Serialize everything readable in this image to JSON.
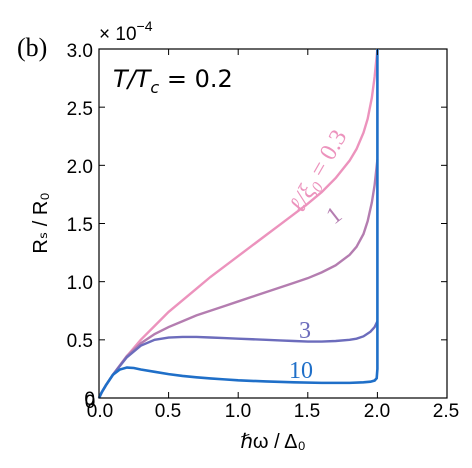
{
  "panel_label": "(b)",
  "chart_data": {
    "type": "line",
    "title": "",
    "xlabel": "ℏω / Δ₀",
    "ylabel": "Rₛ / R₀",
    "y_multiplier": "× 10",
    "y_multiplier_exp": "−4",
    "xlim": [
      0,
      2.5
    ],
    "ylim": [
      0,
      3.0
    ],
    "x_ticks": [
      "0",
      "0.0",
      "0.5",
      "1.0",
      "1.5",
      "2.0",
      "2.5"
    ],
    "y_ticks": [
      "0",
      "0.5",
      "1.0",
      "1.5",
      "2.0",
      "2.5",
      "3.0"
    ],
    "grid": false,
    "annotation_main": "T/T",
    "annotation_main_sub": "c",
    "annotation_main_value": " = 0.2",
    "series": [
      {
        "label_text": "ℓ/ξ",
        "label_sub": "0",
        "label_value": " = 0.3",
        "color": "#ec93bd",
        "x": [
          0.0,
          0.02,
          0.05,
          0.1,
          0.2,
          0.3,
          0.4,
          0.5,
          0.6,
          0.7,
          0.8,
          0.9,
          1.0,
          1.1,
          1.2,
          1.3,
          1.4,
          1.5,
          1.6,
          1.7,
          1.8,
          1.85,
          1.9,
          1.93,
          1.96,
          1.98,
          2.0
        ],
        "y": [
          0.0,
          0.05,
          0.11,
          0.2,
          0.36,
          0.5,
          0.62,
          0.74,
          0.84,
          0.94,
          1.04,
          1.13,
          1.22,
          1.31,
          1.4,
          1.49,
          1.58,
          1.67,
          1.77,
          1.89,
          2.04,
          2.14,
          2.28,
          2.4,
          2.58,
          2.76,
          3.0
        ]
      },
      {
        "label_text": "1",
        "color": "#b47db0",
        "x": [
          0.0,
          0.02,
          0.05,
          0.1,
          0.2,
          0.3,
          0.4,
          0.5,
          0.6,
          0.7,
          0.8,
          0.9,
          1.0,
          1.1,
          1.2,
          1.3,
          1.4,
          1.5,
          1.6,
          1.7,
          1.8,
          1.85,
          1.9,
          1.93,
          1.96,
          1.98,
          2.0
        ],
        "y": [
          0.0,
          0.05,
          0.11,
          0.2,
          0.36,
          0.47,
          0.55,
          0.61,
          0.66,
          0.71,
          0.75,
          0.79,
          0.83,
          0.87,
          0.91,
          0.95,
          0.99,
          1.03,
          1.08,
          1.14,
          1.23,
          1.3,
          1.41,
          1.52,
          1.68,
          1.83,
          2.05
        ]
      },
      {
        "label_text": "3",
        "color": "#6c6cbc",
        "x": [
          0.0,
          0.02,
          0.05,
          0.1,
          0.2,
          0.3,
          0.4,
          0.5,
          0.6,
          0.7,
          0.8,
          0.9,
          1.0,
          1.1,
          1.2,
          1.3,
          1.4,
          1.5,
          1.6,
          1.7,
          1.8,
          1.85,
          1.9,
          1.95,
          1.98,
          2.0
        ],
        "y": [
          0.0,
          0.05,
          0.11,
          0.2,
          0.35,
          0.45,
          0.5,
          0.52,
          0.525,
          0.525,
          0.52,
          0.515,
          0.51,
          0.505,
          0.5,
          0.495,
          0.49,
          0.485,
          0.485,
          0.49,
          0.5,
          0.51,
          0.53,
          0.57,
          0.61,
          0.66
        ]
      },
      {
        "label_text": "10",
        "color": "#1f6fc8",
        "x": [
          0.0,
          0.02,
          0.05,
          0.1,
          0.15,
          0.2,
          0.25,
          0.3,
          0.4,
          0.5,
          0.6,
          0.7,
          0.8,
          0.9,
          1.0,
          1.2,
          1.4,
          1.6,
          1.8,
          1.9,
          1.95,
          1.98,
          1.995,
          2.0,
          2.0
        ],
        "y": [
          0.0,
          0.05,
          0.11,
          0.2,
          0.245,
          0.262,
          0.258,
          0.245,
          0.225,
          0.205,
          0.19,
          0.178,
          0.168,
          0.16,
          0.152,
          0.142,
          0.135,
          0.13,
          0.13,
          0.135,
          0.14,
          0.15,
          0.17,
          0.25,
          3.0
        ]
      }
    ]
  }
}
